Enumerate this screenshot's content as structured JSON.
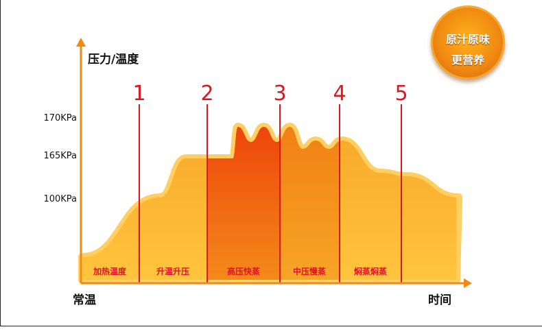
{
  "chart_data": {
    "type": "area",
    "ylabel": "压力/温度",
    "xlabel": "时间",
    "origin_label": "常温",
    "y_ticks": [
      "170KPa",
      "165KPa",
      "100KPa"
    ],
    "stage_markers": [
      "1",
      "2",
      "3",
      "4",
      "5"
    ],
    "stages": [
      "加热温度",
      "升温升压",
      "高压快蒸",
      "中压慢蒸",
      "焖蒸焖蒸"
    ],
    "curve": [
      [
        0.0,
        0
      ],
      [
        3.0,
        100
      ],
      [
        4.0,
        165
      ],
      [
        5.8,
        165
      ],
      [
        6.0,
        170
      ],
      [
        6.5,
        167
      ],
      [
        7.0,
        170
      ],
      [
        7.5,
        167
      ],
      [
        8.0,
        170
      ],
      [
        8.5,
        166
      ],
      [
        9.0,
        168
      ],
      [
        9.5,
        166
      ],
      [
        10.0,
        168
      ],
      [
        11.5,
        160
      ],
      [
        12.5,
        158
      ],
      [
        14.5,
        100
      ]
    ],
    "colors": {
      "light": "#ffbe3a",
      "stage1": "#f6a425",
      "stage2": "#ef4b0d",
      "stage3": "#f4840f",
      "stage4": "#f6a425",
      "marker": "#dd1620",
      "axis": "#f08a12",
      "stage_label": "#e01428"
    }
  },
  "badge": {
    "line1": "原汁原味",
    "line2": "更营养"
  }
}
